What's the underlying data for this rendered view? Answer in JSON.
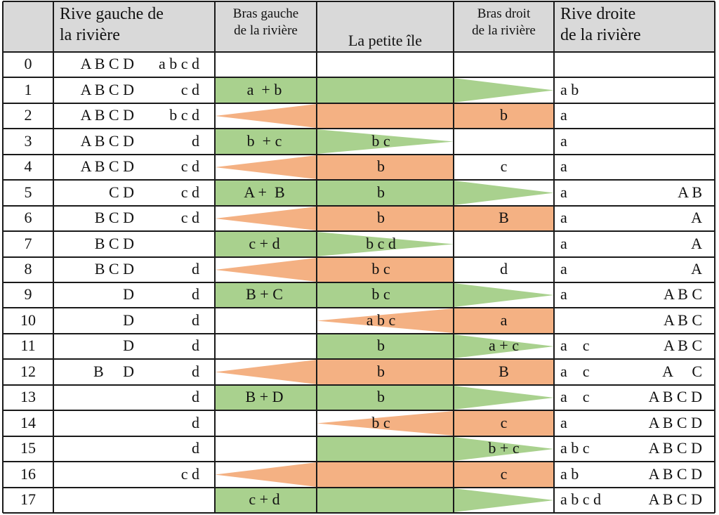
{
  "colors": {
    "header_bg": "#d9d9d9",
    "go": "#a9d18e",
    "back": "#f4b183",
    "grid": "#1a1a1a"
  },
  "header": {
    "left_bank": [
      "Rive gauche de",
      "la rivière"
    ],
    "left_arm": [
      "Bras gauche",
      "de la rivière"
    ],
    "island": [
      "La petite île"
    ],
    "right_arm": [
      "Bras droit",
      "de la rivière"
    ],
    "right_bank": [
      "Rive droite",
      "de la rivière"
    ]
  },
  "rows": [
    {
      "step": "0",
      "left_upper": "A B C D",
      "left_lower": "a b c d",
      "left_arm": "",
      "island": "",
      "right_arm": "",
      "right_lower": "",
      "right_upper": ""
    },
    {
      "step": "1",
      "left_upper": "A B C D",
      "left_lower": "c d",
      "left_arm": "a  + b",
      "island": "",
      "right_arm": "",
      "right_lower": "a b",
      "right_upper": ""
    },
    {
      "step": "2",
      "left_upper": "A B C D",
      "left_lower": "b c d",
      "left_arm": "",
      "island": "",
      "right_arm": "b",
      "right_lower": "a",
      "right_upper": ""
    },
    {
      "step": "3",
      "left_upper": "A B C D",
      "left_lower": "d",
      "left_arm": "b  + c",
      "island": "b c",
      "right_arm": "",
      "right_lower": "a",
      "right_upper": ""
    },
    {
      "step": "4",
      "left_upper": "A B C D",
      "left_lower": "c d",
      "left_arm": "",
      "island": "b",
      "right_arm": "c",
      "right_lower": "a",
      "right_upper": ""
    },
    {
      "step": "5",
      "left_upper": "C D",
      "left_lower": "c d",
      "left_arm": "A +  B",
      "island": "b",
      "right_arm": "",
      "right_lower": "a",
      "right_upper": "A B"
    },
    {
      "step": "6",
      "left_upper": "B C D",
      "left_lower": "c d",
      "left_arm": "",
      "island": "b",
      "right_arm": "B",
      "right_lower": "a",
      "right_upper": "A"
    },
    {
      "step": "7",
      "left_upper": "B C D",
      "left_lower": "",
      "left_arm": "c + d",
      "island": "b c d",
      "right_arm": "",
      "right_lower": "a",
      "right_upper": "A"
    },
    {
      "step": "8",
      "left_upper": "B C D",
      "left_lower": "d",
      "left_arm": "",
      "island": "b c",
      "right_arm": "d",
      "right_lower": "a",
      "right_upper": "A"
    },
    {
      "step": "9",
      "left_upper": "D",
      "left_lower": "d",
      "left_arm": "B + C",
      "island": "b c",
      "right_arm": "",
      "right_lower": "a",
      "right_upper": "A B C"
    },
    {
      "step": "10",
      "left_upper": "D",
      "left_lower": "d",
      "left_arm": "",
      "island": "a b c",
      "right_arm": "a",
      "right_lower": "",
      "right_upper": "A B C"
    },
    {
      "step": "11",
      "left_upper": "D",
      "left_lower": "d",
      "left_arm": "",
      "island": "b",
      "right_arm": "a + c",
      "right_lower": "a    c",
      "right_upper": "A B C"
    },
    {
      "step": "12",
      "left_upper": "B     D",
      "left_lower": "d",
      "left_arm": "",
      "island": "b",
      "right_arm": "B",
      "right_lower": "a    c",
      "right_upper": "A     C"
    },
    {
      "step": "13",
      "left_upper": "",
      "left_lower": "d",
      "left_arm": "B + D",
      "island": "b",
      "right_arm": "",
      "right_lower": "a    c",
      "right_upper": "A B C D"
    },
    {
      "step": "14",
      "left_upper": "",
      "left_lower": "d",
      "left_arm": "",
      "island": "b c",
      "right_arm": "c",
      "right_lower": "a",
      "right_upper": "A B C D"
    },
    {
      "step": "15",
      "left_upper": "",
      "left_lower": "d",
      "left_arm": "",
      "island": "",
      "right_arm": "b + c",
      "right_lower": "a b c",
      "right_upper": "A B C D"
    },
    {
      "step": "16",
      "left_upper": "",
      "left_lower": "c d",
      "left_arm": "",
      "island": "",
      "right_arm": "c",
      "right_lower": "a b",
      "right_upper": "A B C D"
    },
    {
      "step": "17",
      "left_upper": "",
      "left_lower": "",
      "left_arm": "c + d",
      "island": "",
      "right_arm": "",
      "right_lower": "a b c d",
      "right_upper": "A B C D"
    }
  ],
  "shapes": [
    {
      "row": 1,
      "kind": "go",
      "segs": [
        [
          "lr",
          "rect"
        ],
        [
          "isl",
          "rect"
        ],
        [
          "ra",
          "tri"
        ]
      ]
    },
    {
      "row": 2,
      "kind": "back",
      "segs": [
        [
          "lr",
          "tri"
        ],
        [
          "isl",
          "rect"
        ],
        [
          "ra",
          "rect"
        ]
      ]
    },
    {
      "row": 3,
      "kind": "go",
      "segs": [
        [
          "lr",
          "rect"
        ],
        [
          "isl",
          "tri"
        ]
      ]
    },
    {
      "row": 4,
      "kind": "back",
      "segs": [
        [
          "lr",
          "tri"
        ],
        [
          "isl",
          "rect"
        ]
      ]
    },
    {
      "row": 5,
      "kind": "go",
      "segs": [
        [
          "lr",
          "rect"
        ],
        [
          "isl",
          "rect"
        ],
        [
          "ra",
          "tri"
        ]
      ]
    },
    {
      "row": 6,
      "kind": "back",
      "segs": [
        [
          "lr",
          "tri"
        ],
        [
          "isl",
          "rect"
        ],
        [
          "ra",
          "rect"
        ]
      ]
    },
    {
      "row": 7,
      "kind": "go",
      "segs": [
        [
          "lr",
          "rect"
        ],
        [
          "isl",
          "tri"
        ]
      ]
    },
    {
      "row": 8,
      "kind": "back",
      "segs": [
        [
          "lr",
          "tri"
        ],
        [
          "isl",
          "rect"
        ]
      ]
    },
    {
      "row": 9,
      "kind": "go",
      "segs": [
        [
          "lr",
          "rect"
        ],
        [
          "isl",
          "rect"
        ],
        [
          "ra",
          "tri"
        ]
      ]
    },
    {
      "row": 10,
      "kind": "back",
      "segs": [
        [
          "isl",
          "tri"
        ],
        [
          "ra",
          "rect"
        ]
      ]
    },
    {
      "row": 11,
      "kind": "go",
      "segs": [
        [
          "isl",
          "rect"
        ],
        [
          "ra",
          "tri"
        ]
      ]
    },
    {
      "row": 12,
      "kind": "back",
      "segs": [
        [
          "lr",
          "tri"
        ],
        [
          "isl",
          "rect"
        ],
        [
          "ra",
          "rect"
        ]
      ]
    },
    {
      "row": 13,
      "kind": "go",
      "segs": [
        [
          "lr",
          "rect"
        ],
        [
          "isl",
          "rect"
        ],
        [
          "ra",
          "tri"
        ]
      ]
    },
    {
      "row": 14,
      "kind": "back",
      "segs": [
        [
          "isl",
          "tri"
        ],
        [
          "ra",
          "rect"
        ]
      ]
    },
    {
      "row": 15,
      "kind": "go",
      "segs": [
        [
          "isl",
          "rect"
        ],
        [
          "ra",
          "tri"
        ]
      ]
    },
    {
      "row": 16,
      "kind": "back",
      "segs": [
        [
          "lr",
          "tri"
        ],
        [
          "isl",
          "rect"
        ],
        [
          "ra",
          "rect"
        ]
      ]
    },
    {
      "row": 17,
      "kind": "go",
      "segs": [
        [
          "lr",
          "rect"
        ],
        [
          "isl",
          "rect"
        ],
        [
          "ra",
          "tri"
        ]
      ]
    }
  ]
}
